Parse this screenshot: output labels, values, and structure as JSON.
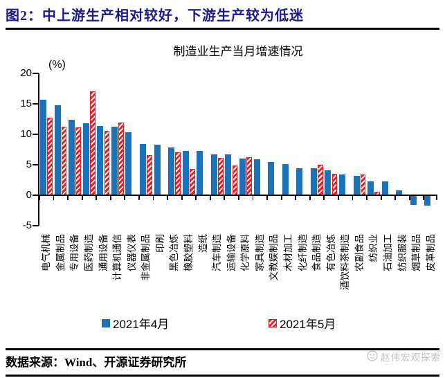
{
  "header": {
    "title": "图2：中上游生产相对较好，下游生产较为低迷"
  },
  "chart_data": {
    "type": "bar",
    "title": "制造业生产当月增速情况",
    "axis_unit_label": "(%)",
    "ylim": [
      -5,
      20
    ],
    "yticks": [
      20,
      15,
      10,
      5,
      0,
      -5
    ],
    "grid": false,
    "legend_position": "bottom",
    "categories": [
      "电气机械",
      "金属制品",
      "专用设备",
      "医药制造",
      "通用设备",
      "计算机通信",
      "仪器仪表",
      "非金属制品",
      "印刷",
      "黑色冶炼",
      "橡胶塑料",
      "造纸",
      "汽车制造",
      "运输设备",
      "化学原料",
      "家具制造",
      "文教娱制品",
      "木材加工",
      "化纤制造",
      "食品制造",
      "有色冶炼",
      "酒饮料茶制造",
      "农副食品",
      "纺织业",
      "石油加工",
      "纺织服装",
      "烟草制品",
      "皮革制品"
    ],
    "series": [
      {
        "name": "2021年4月",
        "style": "solid",
        "color": "#1b72b8",
        "values": [
          15.7,
          14.8,
          12.4,
          11.8,
          11.4,
          11.2,
          10.3,
          8.4,
          8.3,
          7.8,
          7.3,
          7.3,
          6.7,
          6.7,
          6.0,
          5.9,
          5.5,
          5.1,
          4.4,
          4.4,
          4.1,
          3.4,
          3.2,
          2.3,
          2.3,
          0.8,
          -1.6,
          -1.7
        ]
      },
      {
        "name": "2021年5月",
        "style": "diagonal-hatch",
        "color": "#ec1c24",
        "values": [
          12.7,
          11.2,
          11.1,
          17.0,
          10.6,
          11.9,
          null,
          6.6,
          null,
          7.0,
          4.3,
          null,
          6.1,
          4.9,
          6.3,
          null,
          null,
          null,
          null,
          5.0,
          3.5,
          null,
          3.4,
          0.6,
          null,
          null,
          null,
          null
        ]
      }
    ]
  },
  "footer": {
    "source": "数据来源：Wind、开源证券研究所",
    "watermark": "赵伟宏观探索"
  },
  "colors": {
    "title_navy": "#1a1a8e",
    "bar_blue": "#1b72b8",
    "bar_red": "#ec1c24",
    "watermark_gray": "#bfbfbf"
  }
}
